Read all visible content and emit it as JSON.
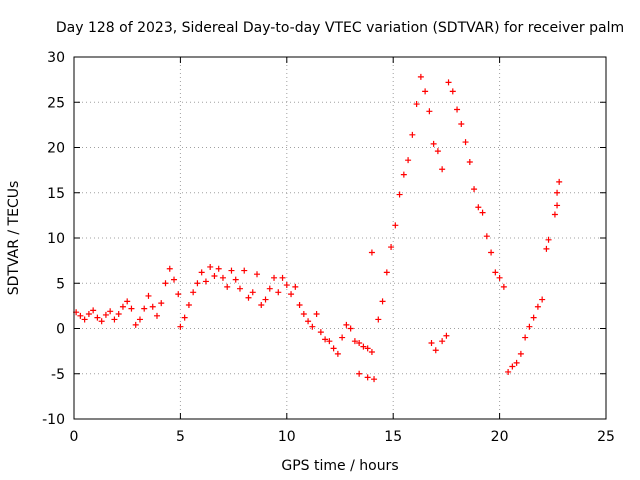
{
  "chart_data": {
    "type": "scatter",
    "title": "Day 128 of 2023, Sidereal Day-to-day VTEC variation (SDTVAR) for receiver palm",
    "xlabel": "GPS time / hours",
    "ylabel": "SDTVAR / TECUs",
    "xlim": [
      0,
      25
    ],
    "ylim": [
      -10,
      30
    ],
    "xticks": [
      0,
      5,
      10,
      15,
      20,
      25
    ],
    "xtick_labels": [
      "0",
      "5",
      "10",
      "15",
      "20",
      "25"
    ],
    "yticks": [
      -10,
      -5,
      0,
      5,
      10,
      15,
      20,
      25,
      30
    ],
    "ytick_labels": [
      "-10",
      "-5",
      "0",
      "5",
      "10",
      "15",
      "20",
      "25",
      "30"
    ],
    "grid": true,
    "legend": "none",
    "marker": "+",
    "series": [
      {
        "name": "SDTVAR",
        "color": "#ff0000",
        "points": [
          [
            0.1,
            1.8
          ],
          [
            0.3,
            1.4
          ],
          [
            0.5,
            1.0
          ],
          [
            0.7,
            1.6
          ],
          [
            0.9,
            2.0
          ],
          [
            1.1,
            1.2
          ],
          [
            1.3,
            0.8
          ],
          [
            1.5,
            1.5
          ],
          [
            1.7,
            1.9
          ],
          [
            1.9,
            1.0
          ],
          [
            2.1,
            1.6
          ],
          [
            2.3,
            2.4
          ],
          [
            2.5,
            3.0
          ],
          [
            2.7,
            2.2
          ],
          [
            2.9,
            0.4
          ],
          [
            3.1,
            1.0
          ],
          [
            3.3,
            2.2
          ],
          [
            3.5,
            3.6
          ],
          [
            3.7,
            2.4
          ],
          [
            3.9,
            1.4
          ],
          [
            4.1,
            2.8
          ],
          [
            4.3,
            5.0
          ],
          [
            4.5,
            6.6
          ],
          [
            4.7,
            5.4
          ],
          [
            4.9,
            3.8
          ],
          [
            5.0,
            0.2
          ],
          [
            5.2,
            1.2
          ],
          [
            5.4,
            2.6
          ],
          [
            5.6,
            4.0
          ],
          [
            5.8,
            5.0
          ],
          [
            6.0,
            6.2
          ],
          [
            6.2,
            5.2
          ],
          [
            6.4,
            6.8
          ],
          [
            6.6,
            5.8
          ],
          [
            6.8,
            6.6
          ],
          [
            7.0,
            5.6
          ],
          [
            7.2,
            4.6
          ],
          [
            7.4,
            6.4
          ],
          [
            7.6,
            5.4
          ],
          [
            7.8,
            4.4
          ],
          [
            8.0,
            6.4
          ],
          [
            8.2,
            3.4
          ],
          [
            8.4,
            4.0
          ],
          [
            8.6,
            6.0
          ],
          [
            8.8,
            2.6
          ],
          [
            9.0,
            3.2
          ],
          [
            9.2,
            4.4
          ],
          [
            9.4,
            5.6
          ],
          [
            9.6,
            4.0
          ],
          [
            9.8,
            5.6
          ],
          [
            10.0,
            4.8
          ],
          [
            10.2,
            3.8
          ],
          [
            10.4,
            4.6
          ],
          [
            10.6,
            2.6
          ],
          [
            10.8,
            1.6
          ],
          [
            11.0,
            0.8
          ],
          [
            11.2,
            0.2
          ],
          [
            11.4,
            1.6
          ],
          [
            11.6,
            -0.4
          ],
          [
            11.8,
            -1.2
          ],
          [
            12.0,
            -1.4
          ],
          [
            12.2,
            -2.2
          ],
          [
            12.4,
            -2.8
          ],
          [
            12.6,
            -1.0
          ],
          [
            12.8,
            0.4
          ],
          [
            13.0,
            0.0
          ],
          [
            13.2,
            -1.4
          ],
          [
            13.4,
            -1.6
          ],
          [
            13.6,
            -2.0
          ],
          [
            13.8,
            -2.2
          ],
          [
            14.0,
            -2.6
          ],
          [
            13.4,
            -5.0
          ],
          [
            13.8,
            -5.4
          ],
          [
            14.1,
            -5.6
          ],
          [
            14.0,
            8.4
          ],
          [
            14.3,
            1.0
          ],
          [
            14.5,
            3.0
          ],
          [
            14.7,
            6.2
          ],
          [
            14.9,
            9.0
          ],
          [
            15.1,
            11.4
          ],
          [
            15.3,
            14.8
          ],
          [
            15.5,
            17.0
          ],
          [
            15.7,
            18.6
          ],
          [
            15.9,
            21.4
          ],
          [
            16.1,
            24.8
          ],
          [
            16.3,
            27.8
          ],
          [
            16.5,
            26.2
          ],
          [
            16.7,
            24.0
          ],
          [
            16.9,
            20.4
          ],
          [
            17.1,
            19.6
          ],
          [
            17.3,
            17.6
          ],
          [
            16.8,
            -1.6
          ],
          [
            17.0,
            -2.4
          ],
          [
            17.3,
            -1.4
          ],
          [
            17.5,
            -0.8
          ],
          [
            17.6,
            27.2
          ],
          [
            17.8,
            26.2
          ],
          [
            18.0,
            24.2
          ],
          [
            18.2,
            22.6
          ],
          [
            18.4,
            20.6
          ],
          [
            18.6,
            18.4
          ],
          [
            18.8,
            15.4
          ],
          [
            19.0,
            13.4
          ],
          [
            19.2,
            12.8
          ],
          [
            19.4,
            10.2
          ],
          [
            19.6,
            8.4
          ],
          [
            19.8,
            6.2
          ],
          [
            20.0,
            5.6
          ],
          [
            20.2,
            4.6
          ],
          [
            20.4,
            -4.8
          ],
          [
            20.6,
            -4.2
          ],
          [
            20.8,
            -3.8
          ],
          [
            21.0,
            -2.8
          ],
          [
            21.2,
            -1.0
          ],
          [
            21.4,
            0.2
          ],
          [
            21.6,
            1.2
          ],
          [
            21.8,
            2.4
          ],
          [
            22.0,
            3.2
          ],
          [
            22.2,
            8.8
          ],
          [
            22.3,
            9.8
          ],
          [
            22.6,
            12.6
          ],
          [
            22.7,
            13.6
          ],
          [
            22.7,
            15.0
          ],
          [
            22.8,
            16.2
          ]
        ]
      }
    ]
  }
}
